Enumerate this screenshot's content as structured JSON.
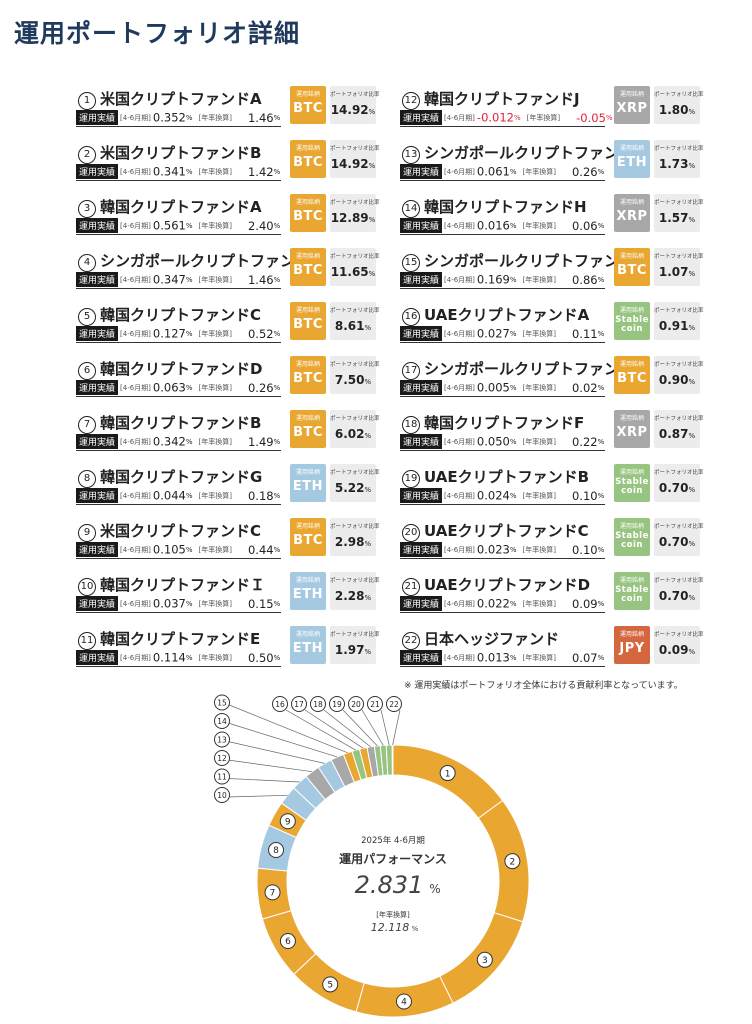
{
  "page": {
    "title": "運用ポートフォリオ詳細",
    "note": "※ 運用実績はポートフォリオ全体における貢献利率となっています。",
    "labels": {
      "performance": "運用実績",
      "period": "[4-6月期]",
      "annualized": "[年率換算]",
      "coin": "運用銘柄",
      "ratio": "ポートフォリオ比率",
      "percent": "%"
    }
  },
  "colors": {
    "BTC": "#e9a631",
    "ETH": "#a6c9e2",
    "XRP": "#a8a8a8",
    "Stablecoin": "#97c581",
    "JPY": "#d4673e"
  },
  "funds": [
    {
      "num": "1",
      "name": "米国クリプトファンドA",
      "q": "0.352",
      "annual": "1.46",
      "coin": "BTC",
      "ratio": "14.92"
    },
    {
      "num": "2",
      "name": "米国クリプトファンドB",
      "q": "0.341",
      "annual": "1.42",
      "coin": "BTC",
      "ratio": "14.92"
    },
    {
      "num": "3",
      "name": "韓国クリプトファンドA",
      "q": "0.561",
      "annual": "2.40",
      "coin": "BTC",
      "ratio": "12.89"
    },
    {
      "num": "4",
      "name": "シンガポールクリプトファンドA",
      "q": "0.347",
      "annual": "1.46",
      "coin": "BTC",
      "ratio": "11.65"
    },
    {
      "num": "5",
      "name": "韓国クリプトファンドC",
      "q": "0.127",
      "annual": "0.52",
      "coin": "BTC",
      "ratio": "8.61"
    },
    {
      "num": "6",
      "name": "韓国クリプトファンドD",
      "q": "0.063",
      "annual": "0.26",
      "coin": "BTC",
      "ratio": "7.50"
    },
    {
      "num": "7",
      "name": "韓国クリプトファンドB",
      "q": "0.342",
      "annual": "1.49",
      "coin": "BTC",
      "ratio": "6.02"
    },
    {
      "num": "8",
      "name": "韓国クリプトファンドG",
      "q": "0.044",
      "annual": "0.18",
      "coin": "ETH",
      "ratio": "5.22"
    },
    {
      "num": "9",
      "name": "米国クリプトファンドC",
      "q": "0.105",
      "annual": "0.44",
      "coin": "BTC",
      "ratio": "2.98"
    },
    {
      "num": "10",
      "name": "韓国クリプトファンドＩ",
      "q": "0.037",
      "annual": "0.15",
      "coin": "ETH",
      "ratio": "2.28"
    },
    {
      "num": "11",
      "name": "韓国クリプトファンドE",
      "q": "0.114",
      "annual": "0.50",
      "coin": "ETH",
      "ratio": "1.97"
    },
    {
      "num": "12",
      "name": "韓国クリプトファンドJ",
      "q": "-0.012",
      "annual": "-0.05",
      "coin": "XRP",
      "ratio": "1.80"
    },
    {
      "num": "13",
      "name": "シンガポールクリプトファンドB",
      "q": "0.061",
      "annual": "0.26",
      "coin": "ETH",
      "ratio": "1.73"
    },
    {
      "num": "14",
      "name": "韓国クリプトファンドH",
      "q": "0.016",
      "annual": "0.06",
      "coin": "XRP",
      "ratio": "1.57"
    },
    {
      "num": "15",
      "name": "シンガポールクリプトファンドC",
      "q": "0.169",
      "annual": "0.86",
      "coin": "BTC",
      "ratio": "1.07"
    },
    {
      "num": "16",
      "name": "UAEクリプトファンドA",
      "q": "0.027",
      "annual": "0.11",
      "coin": "Stablecoin",
      "ratio": "0.91"
    },
    {
      "num": "17",
      "name": "シンガポールクリプトファンドD",
      "q": "0.005",
      "annual": "0.02",
      "coin": "BTC",
      "ratio": "0.90"
    },
    {
      "num": "18",
      "name": "韓国クリプトファンドF",
      "q": "0.050",
      "annual": "0.22",
      "coin": "XRP",
      "ratio": "0.87"
    },
    {
      "num": "19",
      "name": "UAEクリプトファンドB",
      "q": "0.024",
      "annual": "0.10",
      "coin": "Stablecoin",
      "ratio": "0.70"
    },
    {
      "num": "20",
      "name": "UAEクリプトファンドC",
      "q": "0.023",
      "annual": "0.10",
      "coin": "Stablecoin",
      "ratio": "0.70"
    },
    {
      "num": "21",
      "name": "UAEクリプトファンドD",
      "q": "0.022",
      "annual": "0.09",
      "coin": "Stablecoin",
      "ratio": "0.70"
    },
    {
      "num": "22",
      "name": "日本ヘッジファンド",
      "q": "0.013",
      "annual": "0.07",
      "coin": "JPY",
      "ratio": "0.09"
    }
  ],
  "chart_data": {
    "type": "pie",
    "donut": true,
    "center": {
      "period": "2025年 4-6月期",
      "heading": "運用パフォーマンス",
      "value": "2.831",
      "value_unit": "%",
      "annual_label": "[年率換算]",
      "annual_value": "12.118",
      "annual_unit": "%"
    },
    "categories": [
      "1",
      "2",
      "3",
      "4",
      "5",
      "6",
      "7",
      "8",
      "9",
      "10",
      "11",
      "12",
      "13",
      "14",
      "15",
      "16",
      "17",
      "18",
      "19",
      "20",
      "21",
      "22"
    ],
    "values": [
      14.92,
      14.92,
      12.89,
      11.65,
      8.61,
      7.5,
      6.02,
      5.22,
      2.98,
      2.28,
      1.97,
      1.8,
      1.73,
      1.57,
      1.07,
      0.91,
      0.9,
      0.87,
      0.7,
      0.7,
      0.7,
      0.09
    ],
    "slice_coins": [
      "BTC",
      "BTC",
      "BTC",
      "BTC",
      "BTC",
      "BTC",
      "BTC",
      "ETH",
      "BTC",
      "ETH",
      "ETH",
      "XRP",
      "ETH",
      "XRP",
      "BTC",
      "Stablecoin",
      "BTC",
      "XRP",
      "Stablecoin",
      "Stablecoin",
      "Stablecoin",
      "JPY"
    ]
  }
}
